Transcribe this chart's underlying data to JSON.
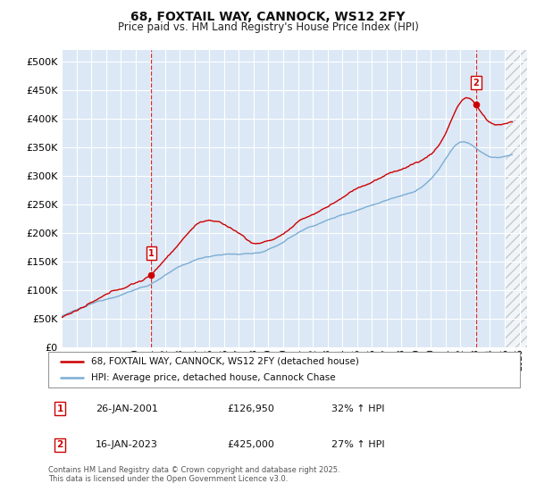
{
  "title": "68, FOXTAIL WAY, CANNOCK, WS12 2FY",
  "subtitle": "Price paid vs. HM Land Registry's House Price Index (HPI)",
  "legend_line1": "68, FOXTAIL WAY, CANNOCK, WS12 2FY (detached house)",
  "legend_line2": "HPI: Average price, detached house, Cannock Chase",
  "annotation1_date": "26-JAN-2001",
  "annotation1_price": "£126,950",
  "annotation1_hpi": "32% ↑ HPI",
  "annotation2_date": "16-JAN-2023",
  "annotation2_price": "£425,000",
  "annotation2_hpi": "27% ↑ HPI",
  "footer": "Contains HM Land Registry data © Crown copyright and database right 2025.\nThis data is licensed under the Open Government Licence v3.0.",
  "red_color": "#cc0000",
  "blue_color": "#7aadd4",
  "background_color": "#dce8f5",
  "grid_color": "#ffffff",
  "ylim": [
    0,
    520000
  ],
  "xlim_start": 1995.0,
  "xlim_end": 2026.5,
  "yticks": [
    0,
    50000,
    100000,
    150000,
    200000,
    250000,
    300000,
    350000,
    400000,
    450000,
    500000
  ],
  "marker1_x": 2001.07,
  "marker1_y": 126950,
  "marker2_x": 2023.05,
  "marker2_y": 425000,
  "sale1_x": 2001.07,
  "sale2_x": 2023.05,
  "hatch_start": 2025.0
}
